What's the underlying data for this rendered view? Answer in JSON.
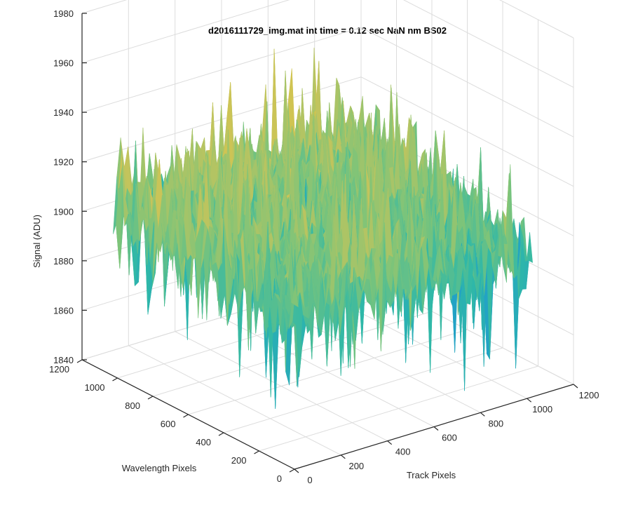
{
  "chart_data": {
    "type": "surface",
    "title": "d2016111729_img.mat int time = 0.12 sec  NaN nm BS02",
    "xlabel": "Track Pixels",
    "ylabel": "Wavelength Pixels",
    "zlabel": "Signal (ADU)",
    "xlim": [
      0,
      1200
    ],
    "ylim": [
      0,
      1200
    ],
    "zlim": [
      1840,
      1980
    ],
    "x_ticks": [
      "0",
      "200",
      "400",
      "600",
      "800",
      "1000",
      "1200"
    ],
    "y_ticks": [
      "0",
      "200",
      "400",
      "600",
      "800",
      "1000",
      "1200"
    ],
    "z_ticks": [
      "1840",
      "1860",
      "1880",
      "1900",
      "1920",
      "1940",
      "1960",
      "1980"
    ],
    "data_extent": {
      "x": [
        0,
        1024
      ],
      "y": [
        0,
        1024
      ]
    },
    "signal_mean": 1905,
    "signal_range": [
      1848,
      1962
    ],
    "colormap": [
      "#1f78c8",
      "#21a0c8",
      "#2fb8a8",
      "#7cc47a",
      "#c8c45a",
      "#e8c43a"
    ],
    "grid": true
  }
}
